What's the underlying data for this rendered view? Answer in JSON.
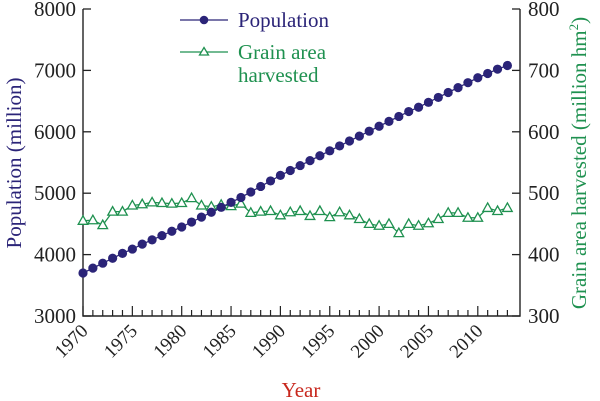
{
  "colors": {
    "population": "#2b2478",
    "grain": "#1f9150",
    "axis": "#222222",
    "xlabel": "#c8281e"
  },
  "chart_data": {
    "type": "line",
    "title": "",
    "xlabel": "Year",
    "ylabel": "Population (million)",
    "y2label": "Grain area harvested (million hm2)",
    "y2label_main": "Grain area harvested (million hm",
    "y2label_sup": "2",
    "y2label_close": ")",
    "xlim": [
      1970,
      2014
    ],
    "ylim": [
      3000,
      8000
    ],
    "y2lim": [
      300,
      800
    ],
    "x_ticks": [
      "1970",
      "1975",
      "1980",
      "1985",
      "1990",
      "1995",
      "2000",
      "2005",
      "2010"
    ],
    "y_ticks": [
      "3000",
      "4000",
      "5000",
      "6000",
      "7000",
      "8000"
    ],
    "y2_ticks": [
      "300",
      "400",
      "500",
      "600",
      "700",
      "800"
    ],
    "legend": {
      "placement": "top-left-center",
      "entries": [
        {
          "label": "Population",
          "marker": "filled-circle"
        },
        {
          "label_line1": "Grain area",
          "label_line2": "harvested",
          "marker": "open-triangle"
        }
      ]
    },
    "x": [
      1970,
      1971,
      1972,
      1973,
      1974,
      1975,
      1976,
      1977,
      1978,
      1979,
      1980,
      1981,
      1982,
      1983,
      1984,
      1985,
      1986,
      1987,
      1988,
      1989,
      1990,
      1991,
      1992,
      1993,
      1994,
      1995,
      1996,
      1997,
      1998,
      1999,
      2000,
      2001,
      2002,
      2003,
      2004,
      2005,
      2006,
      2007,
      2008,
      2009,
      2010,
      2011,
      2012,
      2013
    ],
    "series": [
      {
        "name": "Population",
        "axis": "left",
        "values": [
          3700,
          3780,
          3860,
          3940,
          4020,
          4090,
          4170,
          4240,
          4310,
          4380,
          4450,
          4530,
          4610,
          4690,
          4770,
          4850,
          4930,
          5020,
          5110,
          5200,
          5290,
          5370,
          5450,
          5530,
          5610,
          5690,
          5770,
          5850,
          5930,
          6010,
          6090,
          6170,
          6250,
          6330,
          6400,
          6480,
          6560,
          6640,
          6720,
          6800,
          6880,
          6950,
          7020,
          7080
        ]
      },
      {
        "name": "Grain area harvested",
        "axis": "right",
        "values": [
          455,
          456,
          448,
          470,
          470,
          480,
          482,
          485,
          484,
          483,
          484,
          492,
          480,
          478,
          481,
          479,
          483,
          468,
          470,
          471,
          464,
          469,
          471,
          463,
          471,
          461,
          469,
          464,
          458,
          450,
          447,
          450,
          435,
          450,
          447,
          451,
          458,
          468,
          468,
          460,
          460,
          476,
          471,
          476
        ]
      }
    ]
  }
}
